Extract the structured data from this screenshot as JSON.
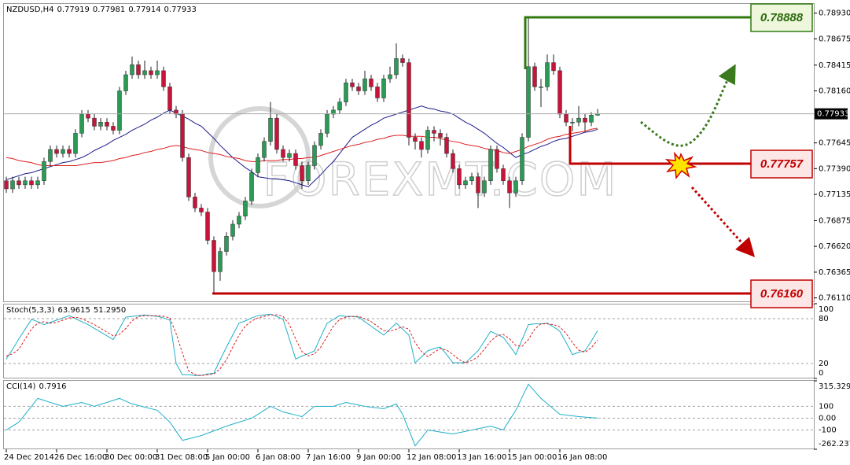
{
  "chart_data": {
    "type": "candlestick",
    "title": "NZDUSD,H4",
    "watermark": "FOREXMT.COM",
    "annotations": [
      "0.78888",
      "0.77757",
      "0.76160"
    ],
    "up_color": "#2a9a55",
    "down_color": "#c8143a",
    "categories": [
      "24 Dec 2014",
      null,
      null,
      null,
      null,
      null,
      null,
      null,
      "26 Dec 16:00",
      null,
      null,
      null,
      null,
      null,
      null,
      null,
      "30 Dec 00:00",
      null,
      null,
      null,
      null,
      null,
      null,
      null,
      "31 Dec 08:00",
      null,
      null,
      null,
      null,
      null,
      null,
      null,
      "5 Jan 00:00",
      null,
      null,
      null,
      null,
      null,
      null,
      null,
      "6 Jan 08:00",
      null,
      null,
      null,
      null,
      null,
      null,
      null,
      "7 Jan 16:00",
      null,
      null,
      null,
      null,
      null,
      null,
      null,
      "9 Jan 00:00",
      null,
      null,
      null,
      null,
      null,
      null,
      null,
      "12 Jan 08:00",
      null,
      null,
      null,
      null,
      null,
      null,
      null,
      "13 Jan 16:00",
      null,
      null,
      null,
      null,
      null,
      null,
      null,
      "15 Jan 00:00",
      null,
      null,
      null,
      null,
      null,
      null,
      null,
      "16 Jan 08:00",
      null,
      null,
      null,
      null,
      null,
      null
    ],
    "ohlc": [
      [
        0.7727,
        0.7731,
        0.7715,
        0.7719
      ],
      [
        0.7719,
        0.7731,
        0.7715,
        0.7727
      ],
      [
        0.7727,
        0.7731,
        0.7719,
        0.7723
      ],
      [
        0.7723,
        0.7731,
        0.7719,
        0.7727
      ],
      [
        0.7727,
        0.7731,
        0.7719,
        0.7723
      ],
      [
        0.7723,
        0.7731,
        0.7719,
        0.7727
      ],
      [
        0.7727,
        0.775,
        0.7723,
        0.7746
      ],
      [
        0.7746,
        0.7762,
        0.7742,
        0.7758
      ],
      [
        0.7758,
        0.7762,
        0.775,
        0.7754
      ],
      [
        0.7754,
        0.7762,
        0.775,
        0.7758
      ],
      [
        0.7758,
        0.7762,
        0.775,
        0.7754
      ],
      [
        0.7754,
        0.7778,
        0.775,
        0.7774
      ],
      [
        0.7774,
        0.7797,
        0.777,
        0.7793
      ],
      [
        0.7793,
        0.7797,
        0.7785,
        0.7789
      ],
      [
        0.7789,
        0.7793,
        0.7777,
        0.7781
      ],
      [
        0.7781,
        0.7789,
        0.7777,
        0.7785
      ],
      [
        0.7785,
        0.7789,
        0.7777,
        0.7781
      ],
      [
        0.7781,
        0.7785,
        0.7773,
        0.7777
      ],
      [
        0.7777,
        0.782,
        0.7773,
        0.7816
      ],
      [
        0.7816,
        0.7836,
        0.7812,
        0.7832
      ],
      [
        0.7832,
        0.785,
        0.7828,
        0.7842
      ],
      [
        0.7842,
        0.7846,
        0.7828,
        0.7832
      ],
      [
        0.7832,
        0.7846,
        0.7828,
        0.7836
      ],
      [
        0.7836,
        0.784,
        0.7828,
        0.7832
      ],
      [
        0.7832,
        0.7846,
        0.7828,
        0.7836
      ],
      [
        0.7836,
        0.784,
        0.7816,
        0.782
      ],
      [
        0.782,
        0.7824,
        0.7793,
        0.7797
      ],
      [
        0.7797,
        0.7801,
        0.7789,
        0.7793
      ],
      [
        0.7793,
        0.7797,
        0.7746,
        0.775
      ],
      [
        0.775,
        0.7754,
        0.7707,
        0.7711
      ],
      [
        0.7711,
        0.7715,
        0.7696,
        0.77
      ],
      [
        0.77,
        0.7704,
        0.7692,
        0.7696
      ],
      [
        0.7696,
        0.77,
        0.7664,
        0.7668
      ],
      [
        0.7668,
        0.7672,
        0.7616,
        0.7637
      ],
      [
        0.7637,
        0.7661,
        0.7628,
        0.7657
      ],
      [
        0.7657,
        0.7676,
        0.7653,
        0.7672
      ],
      [
        0.7672,
        0.7688,
        0.7668,
        0.7684
      ],
      [
        0.7684,
        0.7696,
        0.768,
        0.7692
      ],
      [
        0.7692,
        0.7711,
        0.7688,
        0.7707
      ],
      [
        0.7707,
        0.7739,
        0.7703,
        0.7735
      ],
      [
        0.7735,
        0.7754,
        0.7731,
        0.775
      ],
      [
        0.775,
        0.777,
        0.7746,
        0.7766
      ],
      [
        0.7766,
        0.7805,
        0.7762,
        0.7789
      ],
      [
        0.7789,
        0.7793,
        0.7754,
        0.7758
      ],
      [
        0.7758,
        0.7762,
        0.7746,
        0.775
      ],
      [
        0.775,
        0.7758,
        0.7746,
        0.7754
      ],
      [
        0.7754,
        0.7758,
        0.7738,
        0.7742
      ],
      [
        0.7742,
        0.7746,
        0.7719,
        0.7727
      ],
      [
        0.7727,
        0.7746,
        0.7723,
        0.7742
      ],
      [
        0.7742,
        0.7766,
        0.7738,
        0.7762
      ],
      [
        0.7762,
        0.7778,
        0.7758,
        0.7774
      ],
      [
        0.7774,
        0.7797,
        0.777,
        0.7793
      ],
      [
        0.7793,
        0.7801,
        0.7789,
        0.7797
      ],
      [
        0.7797,
        0.7809,
        0.7793,
        0.7805
      ],
      [
        0.7805,
        0.7828,
        0.7801,
        0.7824
      ],
      [
        0.7824,
        0.7828,
        0.7816,
        0.782
      ],
      [
        0.782,
        0.7824,
        0.7812,
        0.7816
      ],
      [
        0.7816,
        0.7836,
        0.7812,
        0.7828
      ],
      [
        0.7828,
        0.7832,
        0.7816,
        0.782
      ],
      [
        0.782,
        0.7824,
        0.7805,
        0.7809
      ],
      [
        0.7809,
        0.7832,
        0.7805,
        0.7828
      ],
      [
        0.7828,
        0.784,
        0.7824,
        0.7832
      ],
      [
        0.7832,
        0.7863,
        0.7828,
        0.7848
      ],
      [
        0.7848,
        0.7852,
        0.784,
        0.7844
      ],
      [
        0.7844,
        0.7848,
        0.7762,
        0.777
      ],
      [
        0.777,
        0.7774,
        0.7758,
        0.7766
      ],
      [
        0.7766,
        0.777,
        0.775,
        0.7758
      ],
      [
        0.7758,
        0.7781,
        0.7754,
        0.7777
      ],
      [
        0.7777,
        0.7781,
        0.7766,
        0.7774
      ],
      [
        0.7774,
        0.7778,
        0.7762,
        0.777
      ],
      [
        0.777,
        0.7774,
        0.775,
        0.7754
      ],
      [
        0.7754,
        0.7758,
        0.7735,
        0.7739
      ],
      [
        0.7739,
        0.7743,
        0.7719,
        0.7723
      ],
      [
        0.7723,
        0.7731,
        0.7719,
        0.7727
      ],
      [
        0.7727,
        0.7735,
        0.7723,
        0.7731
      ],
      [
        0.7731,
        0.7735,
        0.77,
        0.7715
      ],
      [
        0.7715,
        0.7731,
        0.7711,
        0.7727
      ],
      [
        0.7727,
        0.7762,
        0.7723,
        0.7758
      ],
      [
        0.7758,
        0.7762,
        0.7735,
        0.7739
      ],
      [
        0.7739,
        0.7743,
        0.7723,
        0.7727
      ],
      [
        0.7727,
        0.7731,
        0.77,
        0.7715
      ],
      [
        0.7715,
        0.7731,
        0.7711,
        0.7727
      ],
      [
        0.7727,
        0.7774,
        0.7723,
        0.777
      ],
      [
        0.777,
        0.7889,
        0.7766,
        0.784
      ],
      [
        0.784,
        0.7844,
        0.7816,
        0.782
      ],
      [
        0.782,
        0.7828,
        0.78,
        0.782
      ],
      [
        0.782,
        0.7852,
        0.7816,
        0.7844
      ],
      [
        0.7844,
        0.7852,
        0.7832,
        0.7836
      ],
      [
        0.7836,
        0.784,
        0.7789,
        0.7793
      ],
      [
        0.7793,
        0.7797,
        0.7781,
        0.7785
      ],
      [
        0.7785,
        0.7789,
        0.7776,
        0.7785
      ],
      [
        0.7785,
        0.7801,
        0.7781,
        0.7789
      ],
      [
        0.7789,
        0.7793,
        0.7776,
        0.7785
      ],
      [
        0.7785,
        0.7795,
        0.7781,
        0.7792
      ],
      [
        0.77919,
        0.77981,
        0.77914,
        0.77933
      ]
    ],
    "ylim": [
      0.76076,
      0.79021
    ],
    "yticks": [
      {
        "value": 0.7611,
        "label": "0.76110"
      },
      0.76365,
      {
        "value": 0.7662,
        "label": "0.76620"
      },
      0.76875,
      0.77135,
      {
        "value": 0.7739,
        "label": "0.77390"
      },
      0.77645,
      {
        "value": 0.7816,
        "label": "0.78160"
      },
      0.78415,
      0.78675,
      {
        "value": 0.7893,
        "label": "0.78930"
      }
    ],
    "overlays": [
      {
        "color": "#1c1c8c",
        "values": [
          0.7728,
          0.773,
          0.7732,
          0.7734,
          0.7735,
          0.7737,
          0.7739,
          0.7741,
          0.7743,
          0.7745,
          0.7746,
          0.7748,
          0.775,
          0.7753,
          0.7757,
          0.776,
          0.7763,
          0.7767,
          0.777,
          0.7773,
          0.7777,
          0.778,
          0.7783,
          0.7787,
          0.779,
          0.7794,
          0.7797,
          0.7794,
          0.7791,
          0.7788,
          0.7784,
          0.7781,
          0.7775,
          0.7769,
          0.7762,
          0.7756,
          0.775,
          0.7745,
          0.774,
          0.7736,
          0.7731,
          0.773,
          0.7729,
          0.7729,
          0.7728,
          0.7727,
          0.7725,
          0.7723,
          0.7721,
          0.7727,
          0.7733,
          0.774,
          0.7746,
          0.7754,
          0.7762,
          0.777,
          0.7774,
          0.7778,
          0.7782,
          0.7785,
          0.7789,
          0.7791,
          0.7793,
          0.7795,
          0.7797,
          0.7799,
          0.7801,
          0.7799,
          0.7798,
          0.7796,
          0.7795,
          0.7793,
          0.7789,
          0.7785,
          0.7782,
          0.7778,
          0.7774,
          0.7769,
          0.7764,
          0.776,
          0.7755,
          0.775,
          0.7753,
          0.7755,
          0.7758,
          0.7761,
          0.7763,
          0.7766,
          0.7768,
          0.7769,
          0.7771,
          0.7773,
          0.7775,
          0.7776,
          0.7778
        ]
      },
      {
        "color": "#dd2020",
        "values": [
          0.775,
          0.7749,
          0.7747,
          0.7746,
          0.7745,
          0.7743,
          0.7742,
          0.7742,
          0.7742,
          0.7742,
          0.7742,
          0.7742,
          0.7743,
          0.7744,
          0.7745,
          0.7745,
          0.7746,
          0.7747,
          0.7749,
          0.775,
          0.7752,
          0.7753,
          0.7755,
          0.7756,
          0.7758,
          0.7759,
          0.7761,
          0.7762,
          0.7761,
          0.7759,
          0.7758,
          0.7757,
          0.7755,
          0.7754,
          0.7753,
          0.7751,
          0.775,
          0.7749,
          0.7747,
          0.7746,
          0.7746,
          0.7747,
          0.7747,
          0.7747,
          0.7748,
          0.7748,
          0.7749,
          0.7749,
          0.775,
          0.775,
          0.7752,
          0.7754,
          0.7756,
          0.7758,
          0.776,
          0.7762,
          0.7763,
          0.7765,
          0.7766,
          0.7768,
          0.7769,
          0.7771,
          0.7772,
          0.7772,
          0.7771,
          0.7771,
          0.7771,
          0.777,
          0.777,
          0.7769,
          0.7767,
          0.7766,
          0.7765,
          0.7763,
          0.7762,
          0.7761,
          0.7759,
          0.7758,
          0.7757,
          0.7755,
          0.7754,
          0.7756,
          0.7758,
          0.7761,
          0.7763,
          0.7765,
          0.7768,
          0.777,
          0.7771,
          0.7773,
          0.7774,
          0.7775,
          0.7776,
          0.7778,
          0.7779
        ]
      }
    ],
    "panels": [
      {
        "type": "line",
        "title": "Stoch(5,3,3)",
        "readouts": [
          63.9615,
          {
            "value": 51.295,
            "label": "51.2950"
          }
        ],
        "ylim": [
          0,
          100
        ],
        "yticks": [
          100,
          80,
          20,
          0
        ],
        "series": [
          {
            "color": "#1fb0c8",
            "values": [
              26,
              39,
              53,
              66,
              79,
              76,
              72,
              75,
              78,
              81,
              84,
              80,
              76,
              72,
              67,
              62,
              57,
              52,
              67,
              82,
              83,
              84,
              85,
              84,
              83,
              81,
              78,
              20,
              5,
              5,
              4,
              4,
              6,
              7,
              25,
              42,
              58,
              74,
              77,
              81,
              84,
              85,
              86,
              83,
              79,
              53,
              26,
              30,
              33,
              37,
              56,
              74,
              79,
              84,
              83,
              83,
              82,
              76,
              70,
              64,
              58,
              66,
              74,
              66,
              58,
              21,
              29,
              37,
              40,
              42,
              32,
              21,
              21,
              21,
              29,
              37,
              50,
              63,
              59,
              55,
              44,
              32,
              52,
              72,
              73,
              73,
              74,
              69,
              63,
              48,
              32,
              35,
              37,
              50,
              63.9615
            ]
          },
          {
            "color": "#dd2020",
            "dash": true,
            "values": [
              30,
              33,
              39,
              53,
              66,
              74,
              76,
              74,
              75,
              78,
              81,
              82,
              80,
              76,
              72,
              67,
              62,
              57,
              59,
              67,
              77,
              83,
              84,
              84,
              84,
              83,
              81,
              60,
              34,
              10,
              5,
              4,
              5,
              6,
              13,
              25,
              42,
              58,
              70,
              77,
              81,
              83,
              85,
              85,
              83,
              72,
              53,
              36,
              30,
              33,
              42,
              56,
              70,
              79,
              82,
              83,
              83,
              80,
              76,
              70,
              64,
              63,
              66,
              69,
              66,
              48,
              36,
              29,
              35,
              40,
              38,
              32,
              25,
              21,
              24,
              29,
              39,
              50,
              57,
              59,
              53,
              44,
              43,
              52,
              66,
              73,
              73,
              72,
              69,
              60,
              48,
              38,
              35,
              41,
              51.295
            ]
          }
        ]
      },
      {
        "type": "line",
        "title": "CCI(14)",
        "readouts": [
          0.7916
        ],
        "ylim": [
          -262.2378,
          315.3299
        ],
        "yticks": [
          315.3299,
          100,
          {
            "value": 0,
            "label": "0.00"
          },
          -100,
          -262.2378
        ],
        "series": [
          {
            "color": "#1fb0c8",
            "values": [
              -100,
              -67,
              -33,
              33,
              100,
              167,
              150,
              133,
              117,
              100,
              111,
              122,
              133,
              117,
              100,
              117,
              133,
              150,
              167,
              143,
              120,
              107,
              93,
              80,
              67,
              17,
              -33,
              -110,
              -187,
              -174,
              -160,
              -147,
              -127,
              -107,
              -87,
              -67,
              -50,
              -33,
              -17,
              0,
              33,
              67,
              100,
              77,
              53,
              40,
              27,
              13,
              57,
              100,
              100,
              100,
              100,
              117,
              133,
              122,
              111,
              100,
              93,
              87,
              80,
              100,
              120,
              33,
              -100,
              -233,
              -167,
              -100,
              -108,
              -117,
              -125,
              -133,
              -122,
              -111,
              -100,
              -89,
              -78,
              -67,
              -83,
              -100,
              -17,
              67,
              177,
              287,
              227,
              167,
              122,
              78,
              33,
              26,
              20,
              13,
              9,
              5,
              0.7916
            ]
          }
        ]
      }
    ]
  }
}
